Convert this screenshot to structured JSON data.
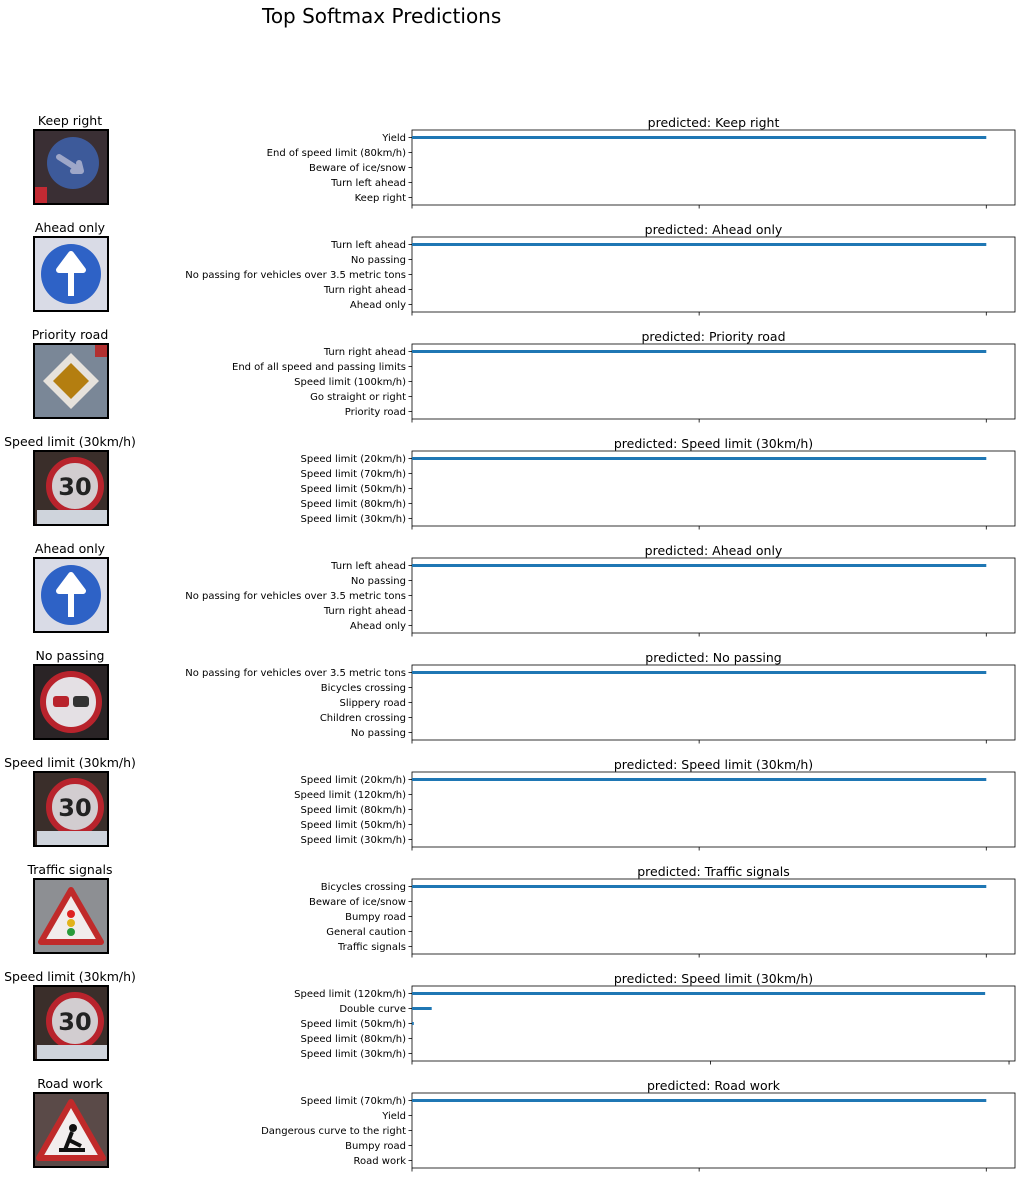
{
  "figure_title": "Top Softmax Predictions",
  "colors": {
    "bar": "#1f77b4"
  },
  "chart_data": [
    {
      "type": "bar",
      "image_title": "Keep right",
      "sign_icon": "keep-right-sign",
      "title": "predicted: Keep right",
      "categories": [
        "Yield",
        "End of speed limit (80km/h)",
        "Beware of ice/snow",
        "Turn left ahead",
        "Keep right"
      ],
      "values": [
        1.0,
        0.0,
        0.0,
        0.0,
        0.0
      ],
      "xlim": [
        0,
        1.05
      ],
      "xticks": [
        "0.0",
        "0.5",
        "1.0"
      ]
    },
    {
      "type": "bar",
      "image_title": "Ahead only",
      "sign_icon": "ahead-only-sign",
      "title": "predicted: Ahead only",
      "categories": [
        "Turn left ahead",
        "No passing",
        "No passing for vehicles over 3.5 metric tons",
        "Turn right ahead",
        "Ahead only"
      ],
      "values": [
        1.0,
        0.0,
        0.0,
        0.0,
        0.0
      ],
      "xlim": [
        0,
        1.05
      ],
      "xticks": [
        "0.0",
        "0.5",
        "1.0"
      ]
    },
    {
      "type": "bar",
      "image_title": "Priority road",
      "sign_icon": "priority-road-sign",
      "title": "predicted: Priority road",
      "categories": [
        "Turn right ahead",
        "End of all speed and passing limits",
        "Speed limit (100km/h)",
        "Go straight or right",
        "Priority road"
      ],
      "values": [
        1.0,
        0.0,
        0.0,
        0.0,
        0.0
      ],
      "xlim": [
        0,
        1.05
      ],
      "xticks": [
        "0.0",
        "0.5",
        "1.0"
      ]
    },
    {
      "type": "bar",
      "image_title": "Speed limit (30km/h)",
      "sign_icon": "speed-limit-30-sign",
      "title": "predicted: Speed limit (30km/h)",
      "categories": [
        "Speed limit (20km/h)",
        "Speed limit (70km/h)",
        "Speed limit (50km/h)",
        "Speed limit (80km/h)",
        "Speed limit (30km/h)"
      ],
      "values": [
        1.0,
        0.0,
        0.0,
        0.0,
        0.0
      ],
      "xlim": [
        0,
        1.05
      ],
      "xticks": [
        "0.0",
        "0.5",
        "1.0"
      ]
    },
    {
      "type": "bar",
      "image_title": "Ahead only",
      "sign_icon": "ahead-only-sign",
      "title": "predicted: Ahead only",
      "categories": [
        "Turn left ahead",
        "No passing",
        "No passing for vehicles over 3.5 metric tons",
        "Turn right ahead",
        "Ahead only"
      ],
      "values": [
        1.0,
        0.0,
        0.0,
        0.0,
        0.0
      ],
      "xlim": [
        0,
        1.05
      ],
      "xticks": [
        "0.0",
        "0.5",
        "1.0"
      ]
    },
    {
      "type": "bar",
      "image_title": "No passing",
      "sign_icon": "no-passing-sign",
      "title": "predicted: No passing",
      "categories": [
        "No passing for vehicles over 3.5 metric tons",
        "Bicycles crossing",
        "Slippery road",
        "Children crossing",
        "No passing"
      ],
      "values": [
        1.0,
        0.0,
        0.0,
        0.0,
        0.0
      ],
      "xlim": [
        0,
        1.05
      ],
      "xticks": [
        "0.0",
        "0.5",
        "1.0"
      ]
    },
    {
      "type": "bar",
      "image_title": "Speed limit (30km/h)",
      "sign_icon": "speed-limit-30-sign",
      "title": "predicted: Speed limit (30km/h)",
      "categories": [
        "Speed limit (20km/h)",
        "Speed limit (120km/h)",
        "Speed limit (80km/h)",
        "Speed limit (50km/h)",
        "Speed limit (30km/h)"
      ],
      "values": [
        1.0,
        0.0,
        0.0,
        0.0,
        0.0
      ],
      "xlim": [
        0,
        1.05
      ],
      "xticks": [
        "0.0",
        "0.5",
        "1.0"
      ]
    },
    {
      "type": "bar",
      "image_title": "Traffic signals",
      "sign_icon": "traffic-signals-sign",
      "title": "predicted: Traffic signals",
      "categories": [
        "Bicycles crossing",
        "Beware of ice/snow",
        "Bumpy road",
        "General caution",
        "Traffic signals"
      ],
      "values": [
        1.0,
        0.0,
        0.0,
        0.0,
        0.0
      ],
      "xlim": [
        0,
        1.05
      ],
      "xticks": [
        "0.0",
        "0.5",
        "1.0"
      ]
    },
    {
      "type": "bar",
      "image_title": "Speed limit (30km/h)",
      "sign_icon": "speed-limit-30-sign",
      "title": "predicted: Speed limit (30km/h)",
      "categories": [
        "Speed limit (120km/h)",
        "Double curve",
        "Speed limit (50km/h)",
        "Speed limit (80km/h)",
        "Speed limit (30km/h)"
      ],
      "values": [
        0.96,
        0.033,
        0.003,
        0.0,
        0.0
      ],
      "xlim": [
        0,
        1.01
      ],
      "xticks": [
        "0.0",
        "0.5",
        "1.0"
      ]
    },
    {
      "type": "bar",
      "image_title": "Road work",
      "sign_icon": "road-work-sign",
      "title": "predicted: Road work",
      "categories": [
        "Speed limit (70km/h)",
        "Yield",
        "Dangerous curve to the right",
        "Bumpy road",
        "Road work"
      ],
      "values": [
        1.0,
        0.0,
        0.0,
        0.0,
        0.0
      ],
      "xlim": [
        0,
        1.05
      ],
      "xticks": [
        "0.0",
        "0.5",
        "1.0"
      ]
    }
  ]
}
